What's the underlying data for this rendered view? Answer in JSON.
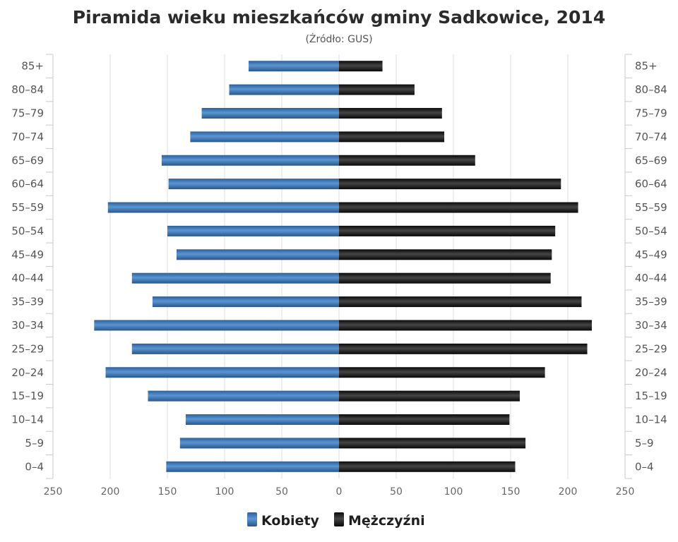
{
  "chart_data": {
    "type": "bar",
    "orientation": "horizontal",
    "subtype": "population-pyramid",
    "title": "Piramida wieku mieszkańców gminy Sadkowice, 2014",
    "subtitle": "(Źródło: GUS)",
    "categories": [
      "85+",
      "80–84",
      "75–79",
      "70–74",
      "65–69",
      "60–64",
      "55–59",
      "50–54",
      "45–49",
      "40–44",
      "35–39",
      "30–34",
      "25–29",
      "20–24",
      "15–19",
      "10–14",
      "5–9",
      "0–4"
    ],
    "series": [
      {
        "name": "Kobiety",
        "side": "left",
        "color": "#3f78b5",
        "values": [
          79,
          96,
          120,
          130,
          155,
          149,
          202,
          150,
          142,
          181,
          163,
          214,
          181,
          204,
          167,
          134,
          139,
          151
        ]
      },
      {
        "name": "Mężczyźni",
        "side": "right",
        "color": "#1e1e1e",
        "values": [
          38,
          66,
          90,
          92,
          119,
          194,
          209,
          189,
          186,
          185,
          212,
          221,
          217,
          180,
          158,
          149,
          163,
          154
        ]
      }
    ],
    "xlim": [
      -250,
      250
    ],
    "xtick_values": [
      -250,
      -200,
      -150,
      -100,
      -50,
      0,
      50,
      100,
      150,
      200,
      250
    ],
    "xtick_labels": [
      "250",
      "200",
      "150",
      "100",
      "50",
      "0",
      "50",
      "100",
      "150",
      "200",
      "250"
    ],
    "xlabel": "",
    "ylabel": "",
    "grid": true,
    "legend_position": "bottom-center"
  }
}
